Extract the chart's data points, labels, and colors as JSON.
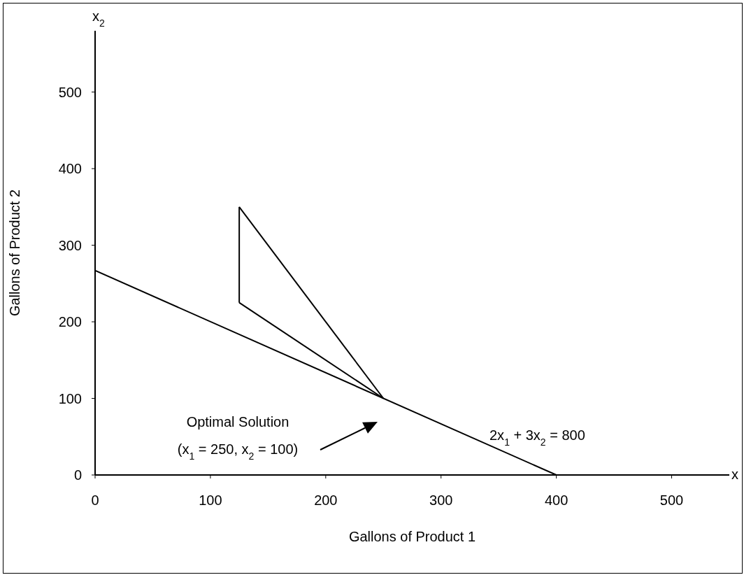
{
  "chart_data": {
    "type": "line",
    "xlabel": "Gallons of Product 1",
    "ylabel": "Gallons of Product 2",
    "series": [
      {
        "color": "#000000",
        "x": [
          0,
          400
        ],
        "values": [
          267,
          0
        ]
      },
      {
        "color": "#000000",
        "x": [
          125,
          125
        ],
        "values": [
          225,
          350
        ]
      },
      {
        "color": "#000000",
        "x": [
          125,
          250
        ],
        "values": [
          350,
          100
        ]
      },
      {
        "color": "#000000",
        "x": [
          125,
          250
        ],
        "values": [
          225,
          100
        ]
      }
    ],
    "xlim": [
      0,
      550
    ],
    "ylim": [
      0,
      580
    ],
    "xticks": [
      0,
      100,
      200,
      300,
      400,
      500
    ],
    "yticks": [
      0,
      100,
      200,
      300,
      400,
      500
    ],
    "grid": false,
    "legend": false,
    "marker": "none",
    "line_style": "solid",
    "annotations": [
      "x$_{2}$",
      "x",
      "Optimal Solution",
      "(x$_{1}$ = 250, x$_{2}$ = 100)",
      "2x$_{1}$ + 3x$_{2}$ = 800"
    ]
  }
}
